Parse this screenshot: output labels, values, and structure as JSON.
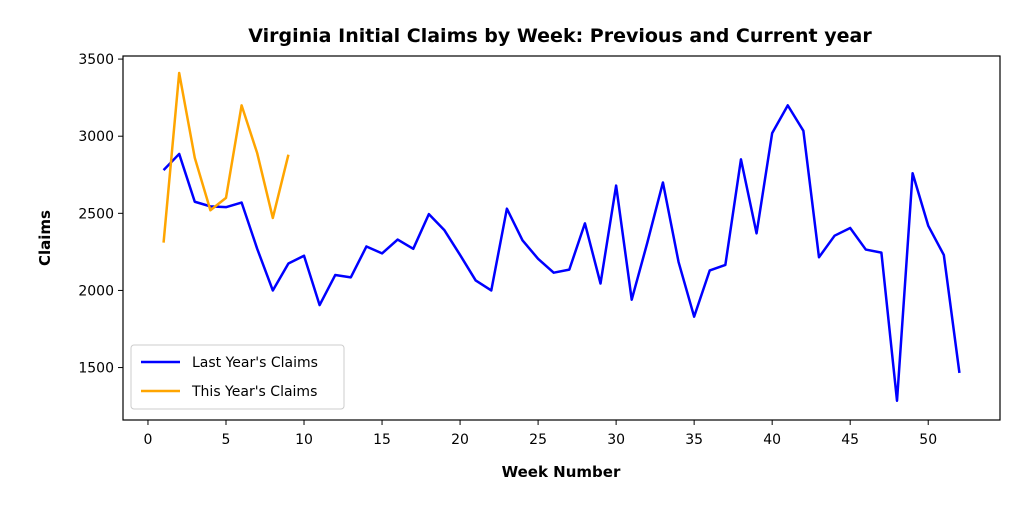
{
  "chart_data": {
    "type": "line",
    "title": "Virginia Initial Claims by Week: Previous and Current year",
    "xlabel": "Week Number",
    "ylabel": "Claims",
    "xlim": [
      -1.6,
      54.6
    ],
    "ylim": [
      1160,
      3520
    ],
    "xticks": [
      0,
      5,
      10,
      15,
      20,
      25,
      30,
      35,
      40,
      45,
      50
    ],
    "yticks": [
      1500,
      2000,
      2500,
      3000,
      3500
    ],
    "grid": false,
    "legend_position": "lower-left",
    "series": [
      {
        "name": "Last Year's Claims",
        "color": "#0000ff",
        "x": [
          1,
          2,
          3,
          4,
          5,
          6,
          7,
          8,
          9,
          10,
          11,
          12,
          13,
          14,
          15,
          16,
          17,
          18,
          19,
          20,
          21,
          22,
          23,
          24,
          25,
          26,
          27,
          28,
          29,
          30,
          31,
          32,
          33,
          34,
          35,
          36,
          37,
          38,
          39,
          40,
          41,
          42,
          43,
          44,
          45,
          46,
          47,
          48,
          49,
          50,
          51,
          52
        ],
        "y": [
          2780,
          2885,
          2575,
          2545,
          2540,
          2570,
          2270,
          2000,
          2175,
          2225,
          1905,
          2100,
          2085,
          2285,
          2240,
          2330,
          2270,
          2495,
          2390,
          2230,
          2065,
          2000,
          2530,
          2325,
          2205,
          2115,
          2135,
          2435,
          2045,
          2680,
          1940,
          2310,
          2700,
          2185,
          1830,
          2130,
          2165,
          2850,
          2370,
          3020,
          3200,
          3035,
          2215,
          2355,
          2405,
          2265,
          2245,
          1285,
          2760,
          2420,
          2230,
          1465
        ]
      },
      {
        "name": "This Year's Claims",
        "color": "#ffa500",
        "x": [
          1,
          2,
          3,
          4,
          5,
          6,
          7,
          8,
          9
        ],
        "y": [
          2310,
          3410,
          2860,
          2520,
          2600,
          3200,
          2890,
          2470,
          2880
        ]
      }
    ]
  }
}
